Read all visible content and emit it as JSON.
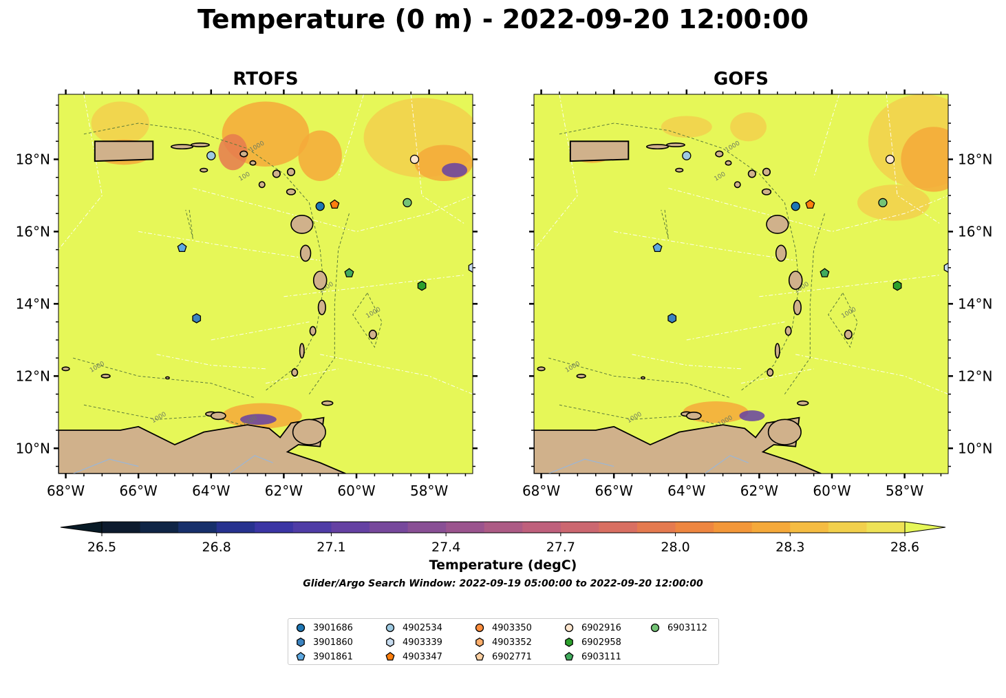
{
  "title": "Temperature (0 m) - 2022-09-20 12:00:00",
  "panels": [
    {
      "name": "RTOFS"
    },
    {
      "name": "GOFS"
    }
  ],
  "map": {
    "lon_ticks": [
      "68°W",
      "66°W",
      "64°W",
      "62°W",
      "60°W",
      "58°W"
    ],
    "lat_ticks": [
      "18°N",
      "16°N",
      "14°N",
      "12°N",
      "10°N"
    ],
    "lon_range": [
      -68.2,
      -56.8
    ],
    "lat_range": [
      9.3,
      19.8
    ],
    "contour_label": "1000",
    "contour_label_small": "100",
    "land_color": "#d0b18b",
    "ocean_base_color": "#e6f758"
  },
  "colorbar": {
    "ticks": [
      "26.5",
      "26.8",
      "27.1",
      "27.4",
      "27.7",
      "28.0",
      "28.3",
      "28.6"
    ],
    "label": "Temperature (degC)",
    "colors": [
      "#0d1b2e",
      "#0f2546",
      "#17306b",
      "#27328f",
      "#3b35a4",
      "#4f3ca6",
      "#6541a3",
      "#77489c",
      "#894f95",
      "#9b548e",
      "#ad5b85",
      "#bf607c",
      "#cc6770",
      "#d96f62",
      "#e57a4f",
      "#ee8640",
      "#f39739",
      "#f5a93a",
      "#f5bc42",
      "#f2d04c",
      "#eee256"
    ],
    "extend_low": "#081a26",
    "extend_high": "#e6f758"
  },
  "search_window": "Glider/Argo Search Window: 2022-09-19 05:00:00 to 2022-09-20 12:00:00",
  "legend": [
    {
      "id": "3901686",
      "shape": "circle",
      "color": "#1f77b4"
    },
    {
      "id": "3901860",
      "shape": "hexagon",
      "color": "#3b83c0"
    },
    {
      "id": "3901861",
      "shape": "pentagon",
      "color": "#5ea8e0"
    },
    {
      "id": "4902534",
      "shape": "circle",
      "color": "#9ecae1"
    },
    {
      "id": "4903339",
      "shape": "hexagon",
      "color": "#c6dbef"
    },
    {
      "id": "4903347",
      "shape": "pentagon",
      "color": "#ff7f0e"
    },
    {
      "id": "4903350",
      "shape": "circle",
      "color": "#fd8d3c"
    },
    {
      "id": "4903352",
      "shape": "hexagon",
      "color": "#fdae6b"
    },
    {
      "id": "6902771",
      "shape": "pentagon",
      "color": "#fdd0a2"
    },
    {
      "id": "6902916",
      "shape": "circle",
      "color": "#fee6ce"
    },
    {
      "id": "6902958",
      "shape": "hexagon",
      "color": "#2ca02c"
    },
    {
      "id": "6903111",
      "shape": "pentagon",
      "color": "#41ab5d"
    },
    {
      "id": "6903112",
      "shape": "circle",
      "color": "#74c476"
    }
  ],
  "floats_on_map": [
    {
      "id": "4902534",
      "lon": -64.0,
      "lat": 18.1
    },
    {
      "id": "6902916",
      "lon": -58.4,
      "lat": 18.0
    },
    {
      "id": "3901686",
      "lon": -61.0,
      "lat": 16.7
    },
    {
      "id": "4903347",
      "lon": -60.6,
      "lat": 16.75
    },
    {
      "id": "6903112",
      "lon": -58.6,
      "lat": 16.8
    },
    {
      "id": "3901861",
      "lon": -64.8,
      "lat": 15.55
    },
    {
      "id": "4903339",
      "lon": -56.8,
      "lat": 15.0
    },
    {
      "id": "6903111",
      "lon": -60.2,
      "lat": 14.85
    },
    {
      "id": "6902958",
      "lon": -58.2,
      "lat": 14.5
    },
    {
      "id": "3901860",
      "lon": -64.4,
      "lat": 13.6
    }
  ]
}
